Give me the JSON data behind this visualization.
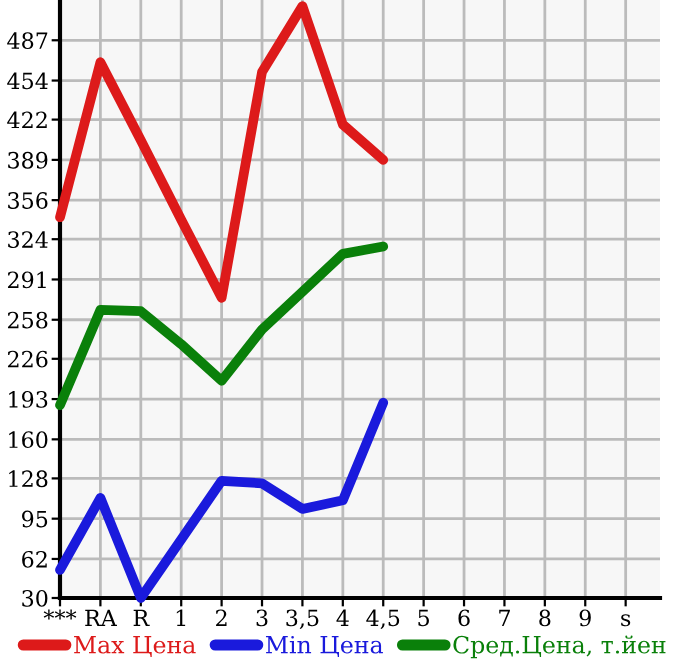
{
  "chart_data": {
    "type": "line",
    "categories": [
      "***",
      "RA",
      "R",
      "1",
      "2",
      "3",
      "3,5",
      "4",
      "4,5",
      "5",
      "6",
      "7",
      "8",
      "9",
      "s"
    ],
    "series": [
      {
        "name": "Max Цена",
        "color": "#dd1a1a",
        "values": [
          342,
          469,
          405,
          340,
          276,
          461,
          515,
          418,
          389,
          null,
          null,
          null,
          null,
          null,
          null
        ]
      },
      {
        "name": "Min Цена",
        "color": "#1a1adc",
        "values": [
          53,
          112,
          30,
          78,
          126,
          124,
          103,
          110,
          190,
          null,
          null,
          null,
          null,
          null,
          null
        ]
      },
      {
        "name": "Сред.Цена, т.йен",
        "color": "#0a800a",
        "values": [
          188,
          266,
          265,
          238,
          208,
          250,
          281,
          312,
          318,
          null,
          null,
          null,
          null,
          null,
          null
        ]
      }
    ],
    "ylim": [
      30,
      520
    ],
    "yticks": [
      30,
      62,
      95,
      128,
      160,
      193,
      226,
      258,
      291,
      324,
      356,
      389,
      422,
      454,
      487
    ],
    "grid": true,
    "legend": "bottom",
    "marker": "none",
    "line_style": "solid"
  }
}
